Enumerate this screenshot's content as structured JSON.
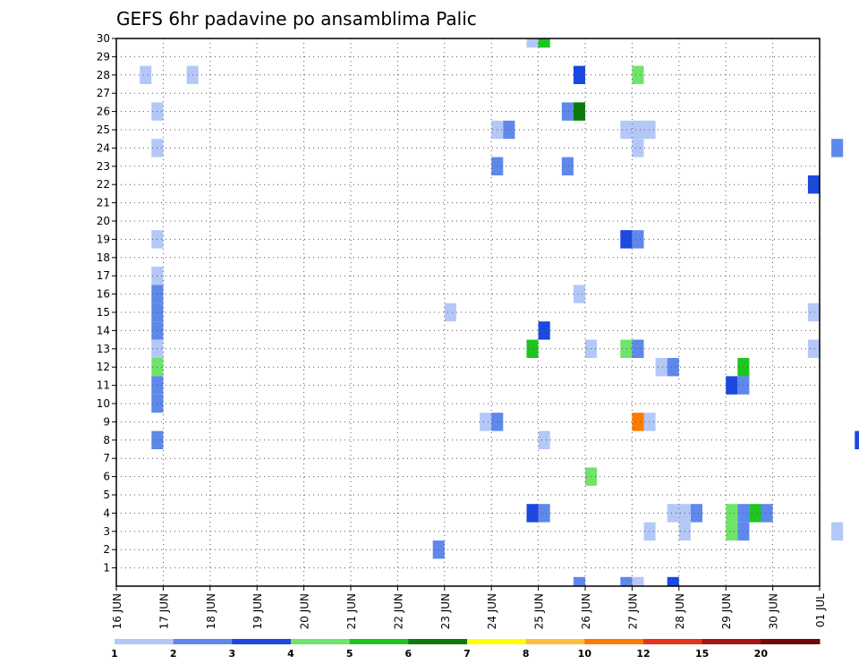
{
  "chart_data": {
    "type": "heatmap",
    "title": "GEFS 6hr padavine po ansamblima Palic",
    "xlabel": "",
    "ylabel": "",
    "x_ticks": [
      "16 JUN",
      "17 JUN",
      "18 JUN",
      "19 JUN",
      "20 JUN",
      "21 JUN",
      "22 JUN",
      "23 JUN",
      "24 JUN",
      "25 JUN",
      "26 JUN",
      "27 JUN",
      "28 JUN",
      "29 JUN",
      "30 JUN",
      "01 JUL"
    ],
    "xlim": [
      0,
      15
    ],
    "y_ticks": [
      1,
      2,
      3,
      4,
      5,
      6,
      7,
      8,
      9,
      10,
      11,
      12,
      13,
      14,
      15,
      16,
      17,
      18,
      19,
      20,
      21,
      22,
      23,
      24,
      25,
      26,
      27,
      28,
      29,
      30
    ],
    "ylim": [
      0,
      30
    ],
    "grid": true,
    "legend": {
      "placement": "bottom",
      "labels": [
        "1",
        "2",
        "3",
        "4",
        "5",
        "6",
        "7",
        "8",
        "10",
        "12",
        "15",
        "20"
      ],
      "colors": [
        "#b4c8f8",
        "#5f88ec",
        "#1a48e0",
        "#6ee46a",
        "#1ec51e",
        "#0a7a0a",
        "#ffff00",
        "#ffbf3a",
        "#ff7a00",
        "#e8321a",
        "#a81414",
        "#6e0a0a"
      ]
    },
    "cell_width_days": 0.25,
    "cells": [
      [
        0.625,
        28,
        0
      ],
      [
        1.625,
        28,
        0
      ],
      [
        0.875,
        26,
        0
      ],
      [
        0.875,
        24,
        0
      ],
      [
        0.875,
        19,
        0
      ],
      [
        0.875,
        17,
        0
      ],
      [
        0.875,
        16,
        1
      ],
      [
        0.875,
        15,
        1
      ],
      [
        0.875,
        14,
        1
      ],
      [
        0.875,
        13,
        0
      ],
      [
        0.875,
        12,
        3
      ],
      [
        0.875,
        11,
        1
      ],
      [
        0.875,
        10,
        1
      ],
      [
        0.875,
        8,
        1
      ],
      [
        7.125,
        15,
        0
      ],
      [
        6.875,
        2,
        1
      ],
      [
        7.875,
        9,
        0
      ],
      [
        8.125,
        9,
        1
      ],
      [
        8.125,
        25,
        0
      ],
      [
        8.375,
        25,
        1
      ],
      [
        8.125,
        23,
        1
      ],
      [
        8.875,
        30,
        0
      ],
      [
        9.125,
        30,
        4
      ],
      [
        9.125,
        14,
        2
      ],
      [
        8.875,
        13,
        4
      ],
      [
        9.125,
        8,
        0
      ],
      [
        8.875,
        4,
        2
      ],
      [
        9.125,
        4,
        1
      ],
      [
        9.625,
        26,
        1
      ],
      [
        9.875,
        26,
        5
      ],
      [
        9.625,
        23,
        1
      ],
      [
        9.875,
        28,
        2
      ],
      [
        9.875,
        16,
        0
      ],
      [
        10.125,
        13,
        0
      ],
      [
        10.125,
        6,
        3
      ],
      [
        9.875,
        0,
        1
      ],
      [
        11.125,
        28,
        3
      ],
      [
        10.875,
        25,
        0
      ],
      [
        11.125,
        25,
        0
      ],
      [
        11.375,
        25,
        0
      ],
      [
        11.125,
        24,
        0
      ],
      [
        10.875,
        19,
        2
      ],
      [
        11.125,
        19,
        1
      ],
      [
        10.875,
        13,
        3
      ],
      [
        11.125,
        13,
        1
      ],
      [
        11.625,
        12,
        0
      ],
      [
        11.875,
        12,
        1
      ],
      [
        11.125,
        9,
        8
      ],
      [
        11.375,
        9,
        0
      ],
      [
        11.375,
        3,
        0
      ],
      [
        10.875,
        0,
        1
      ],
      [
        11.125,
        0,
        0
      ],
      [
        11.875,
        4,
        0
      ],
      [
        12.125,
        4,
        0
      ],
      [
        12.375,
        4,
        1
      ],
      [
        12.125,
        3,
        0
      ],
      [
        11.875,
        0,
        2
      ],
      [
        13.375,
        12,
        4
      ],
      [
        13.125,
        11,
        2
      ],
      [
        13.375,
        11,
        1
      ],
      [
        13.125,
        4,
        3
      ],
      [
        13.375,
        4,
        1
      ],
      [
        13.625,
        4,
        4
      ],
      [
        13.875,
        4,
        1
      ],
      [
        13.125,
        3,
        3
      ],
      [
        13.375,
        3,
        1
      ],
      [
        14.875,
        22,
        2
      ],
      [
        15.375,
        24,
        1
      ],
      [
        14.875,
        15,
        0
      ],
      [
        14.875,
        13,
        0
      ],
      [
        15.375,
        3,
        0
      ],
      [
        15.875,
        8,
        2
      ]
    ]
  }
}
